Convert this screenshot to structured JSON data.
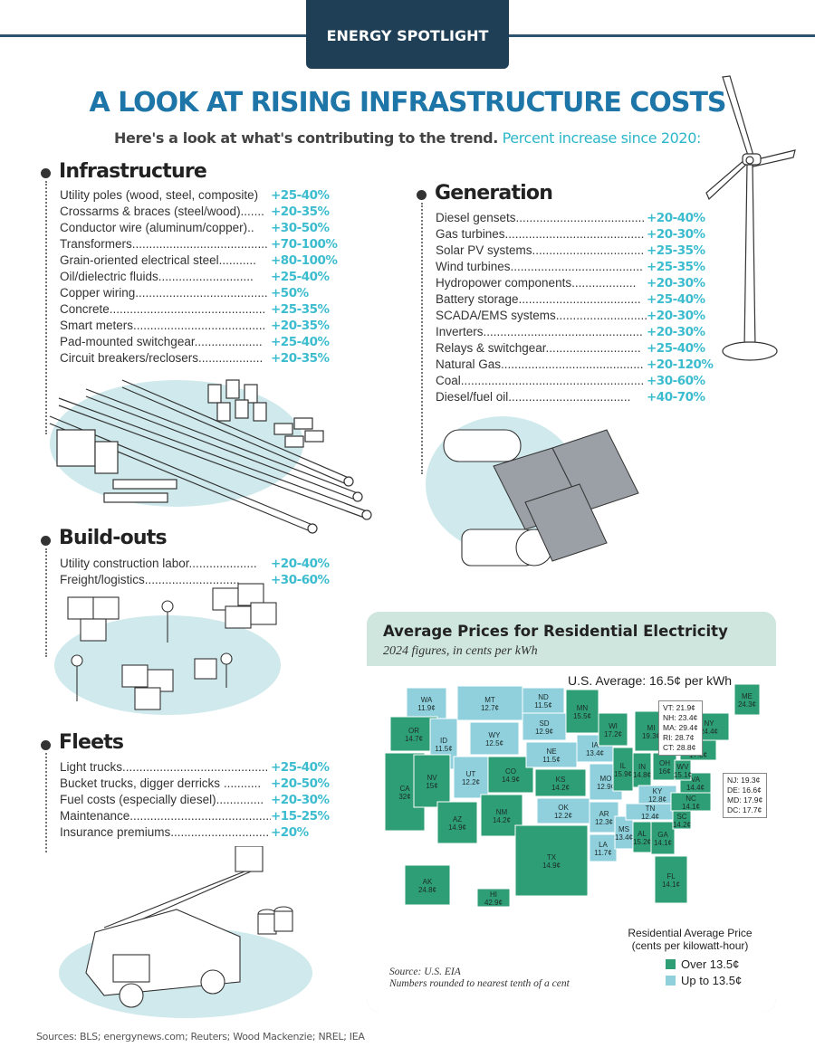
{
  "banner": "ENERGY SPOTLIGHT",
  "title": "A LOOK AT RISING INFRASTRUCTURE COSTS",
  "subtitle_main": "Here's a look at what's contributing to the trend.",
  "subtitle_accent": "Percent increase since 2020:",
  "sections": {
    "infrastructure": {
      "title": "Infrastructure",
      "items": [
        {
          "label": "Utility poles (wood, steel, composite)",
          "value": "+25-40%"
        },
        {
          "label": "Crossarms & braces (steel/wood).......",
          "value": "+20-35%"
        },
        {
          "label": "Conductor wire (aluminum/copper)..",
          "value": "+30-50%"
        },
        {
          "label": "Transformers........................................",
          "value": "+70-100%"
        },
        {
          "label": "Grain-oriented electrical steel...........",
          "value": "+80-100%"
        },
        {
          "label": "Oil/dielectric fluids............................",
          "value": "+25-40%"
        },
        {
          "label": "Copper wiring.......................................",
          "value": "+50%"
        },
        {
          "label": "Concrete..............................................",
          "value": "+25-35%"
        },
        {
          "label": "Smart meters.......................................",
          "value": "+20-35%"
        },
        {
          "label": "Pad-mounted switchgear....................",
          "value": "+25-40%"
        },
        {
          "label": "Circuit breakers/reclosers...................",
          "value": "+20-35%"
        }
      ]
    },
    "generation": {
      "title": "Generation",
      "items": [
        {
          "label": "Diesel gensets......................................",
          "value": "+20-40%"
        },
        {
          "label": "Gas turbines.........................................",
          "value": "+20-30%"
        },
        {
          "label": "Solar PV systems.................................",
          "value": "+25-35%"
        },
        {
          "label": "Wind turbines.......................................",
          "value": "+25-35%"
        },
        {
          "label": "Hydropower components...................",
          "value": "+20-30%"
        },
        {
          "label": "Battery storage....................................",
          "value": "+25-40%"
        },
        {
          "label": "SCADA/EMS systems...........................",
          "value": "+20-30%"
        },
        {
          "label": "Inverters...............................................",
          "value": "+20-30%"
        },
        {
          "label": "Relays & switchgear............................",
          "value": "+25-40%"
        },
        {
          "label": "Natural Gas..........................................",
          "value": "+20-120%"
        },
        {
          "label": "Coal......................................................",
          "value": "+30-60%"
        },
        {
          "label": "Diesel/fuel oil....................................",
          "value": "+40-70%"
        }
      ]
    },
    "buildouts": {
      "title": "Build-outs",
      "items": [
        {
          "label": "Utility construction labor....................",
          "value": "+20-40%"
        },
        {
          "label": "Freight/logistics............................",
          "value": "+30-60%"
        }
      ]
    },
    "fleets": {
      "title": "Fleets",
      "items": [
        {
          "label": "Light trucks...........................................",
          "value": "+25-40%"
        },
        {
          "label": "Bucket trucks, digger derricks ...........",
          "value": "+20-50%"
        },
        {
          "label": "Fuel costs (especially diesel)..............",
          "value": "+20-30%"
        },
        {
          "label": "Maintenance..........................................",
          "value": "+15-25%"
        },
        {
          "label": "Insurance premiums.............................",
          "value": "+20%"
        }
      ]
    }
  },
  "map": {
    "title": "Average Prices for Residential Electricity",
    "subtitle": "2024 figures, in cents per kWh",
    "us_average": "U.S. Average: 16.5¢ per kWh",
    "colors": {
      "over": "#2e9e76",
      "under": "#8fd0dc"
    },
    "states": [
      {
        "code": "WA",
        "value": "11.9¢"
      },
      {
        "code": "OR",
        "value": "14.7¢"
      },
      {
        "code": "CA",
        "value": "32¢"
      },
      {
        "code": "ID",
        "value": "11.5¢"
      },
      {
        "code": "NV",
        "value": "15¢"
      },
      {
        "code": "AZ",
        "value": "14.9¢"
      },
      {
        "code": "MT",
        "value": "12.7¢"
      },
      {
        "code": "WY",
        "value": "12.5¢"
      },
      {
        "code": "UT",
        "value": "12.2¢"
      },
      {
        "code": "CO",
        "value": "14.9¢"
      },
      {
        "code": "NM",
        "value": "14.2¢"
      },
      {
        "code": "ND",
        "value": "11.5¢"
      },
      {
        "code": "SD",
        "value": "12.9¢"
      },
      {
        "code": "NE",
        "value": "11.5¢"
      },
      {
        "code": "KS",
        "value": "14.2¢"
      },
      {
        "code": "OK",
        "value": "12.2¢"
      },
      {
        "code": "TX",
        "value": "14.9¢"
      },
      {
        "code": "MN",
        "value": "15.5¢"
      },
      {
        "code": "IA",
        "value": "13.4¢"
      },
      {
        "code": "MO",
        "value": "12.9¢"
      },
      {
        "code": "AR",
        "value": "12.3¢"
      },
      {
        "code": "LA",
        "value": "11.7¢"
      },
      {
        "code": "WI",
        "value": "17.2¢"
      },
      {
        "code": "IL",
        "value": "15.9¢"
      },
      {
        "code": "MS",
        "value": "13.4¢"
      },
      {
        "code": "MI",
        "value": "19.3¢"
      },
      {
        "code": "IN",
        "value": "14.8¢"
      },
      {
        "code": "OH",
        "value": "16¢"
      },
      {
        "code": "KY",
        "value": "12.8¢"
      },
      {
        "code": "TN",
        "value": "12.4¢"
      },
      {
        "code": "AL",
        "value": "15.2¢"
      },
      {
        "code": "GA",
        "value": "14.1¢"
      },
      {
        "code": "FL",
        "value": "14.1¢"
      },
      {
        "code": "SC",
        "value": "14.2¢"
      },
      {
        "code": "NC",
        "value": "14.1¢"
      },
      {
        "code": "VA",
        "value": "14.4¢"
      },
      {
        "code": "WV",
        "value": "15.1¢"
      },
      {
        "code": "PA",
        "value": "17.8¢"
      },
      {
        "code": "NY",
        "value": "24.4¢"
      },
      {
        "code": "ME",
        "value": "24.3¢"
      },
      {
        "code": "AK",
        "value": "24.8¢"
      },
      {
        "code": "HI",
        "value": "42.9¢"
      }
    ],
    "ne_callout": [
      "VT: 21.9¢",
      "NH: 23.4¢",
      "MA: 29.4¢",
      "RI: 28.7¢",
      "CT: 28.8¢"
    ],
    "ma_callout": [
      "NJ: 19.3¢",
      "DE: 16.6¢",
      "MD: 17.9¢",
      "DC: 17.7¢"
    ],
    "legend_title": "Residential Average Price (cents per kilowatt-hour)",
    "legend_over": "Over 13.5¢",
    "legend_under": "Up to 13.5¢",
    "source": "Source: U.S. EIA",
    "source_note": "Numbers rounded to nearest tenth of a cent"
  },
  "sources": "Sources: BLS; energynews.com; Reuters; Wood Mackenzie; NREL; IEA"
}
